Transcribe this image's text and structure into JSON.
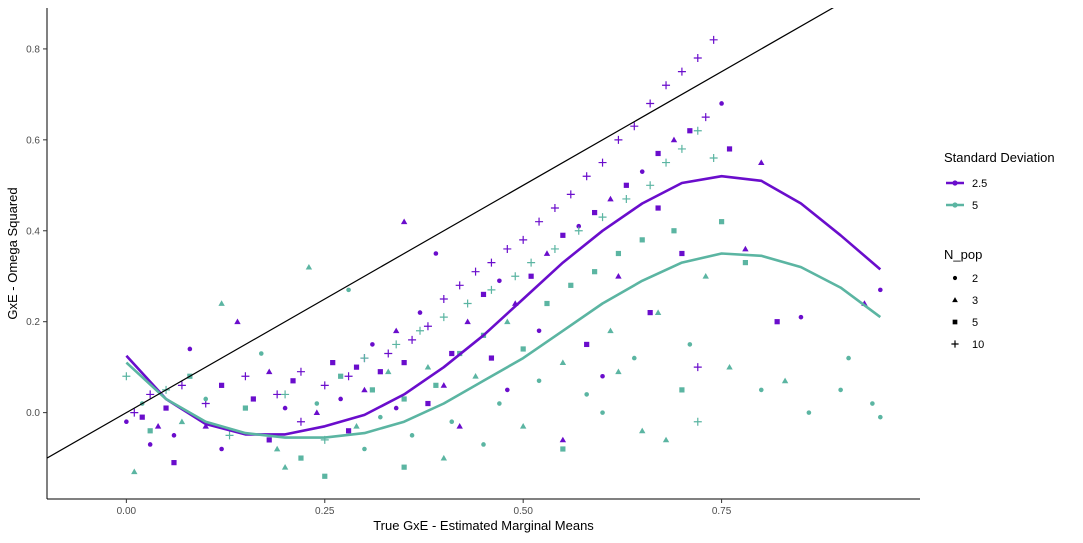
{
  "chart_data": {
    "type": "scatter",
    "xlabel": "True GxE - Estimated Marginal Means",
    "ylabel": "GxE - Omega Squared",
    "xlim": [
      -0.1,
      1.0
    ],
    "ylim": [
      -0.19,
      0.89
    ],
    "x_ticks": [
      "0.00",
      "0.25",
      "0.50",
      "0.75"
    ],
    "y_ticks": [
      "0.0",
      "0.2",
      "0.4",
      "0.6",
      "0.8"
    ],
    "grid": false,
    "legend_placement": "right",
    "reference_line": {
      "intercept": 0.0,
      "slope": 1.0,
      "color": "#000000"
    },
    "colors": {
      "2.5": "#6a0dcc",
      "5": "#5bb5a2"
    },
    "legends": [
      {
        "title": "Standard Deviation",
        "entries": [
          {
            "label": "2.5",
            "color": "#6a0dcc"
          },
          {
            "label": "5",
            "color": "#5bb5a2"
          }
        ]
      },
      {
        "title": "N_pop",
        "entries": [
          {
            "label": "2",
            "shape": "circle"
          },
          {
            "label": "3",
            "shape": "triangle"
          },
          {
            "label": "5",
            "shape": "square"
          },
          {
            "label": "10",
            "shape": "plus"
          }
        ]
      }
    ],
    "trend_lines": [
      {
        "name": "2.5",
        "color": "#6a0dcc",
        "x": [
          0.0,
          0.05,
          0.1,
          0.15,
          0.2,
          0.25,
          0.3,
          0.35,
          0.4,
          0.45,
          0.5,
          0.55,
          0.6,
          0.65,
          0.7,
          0.75,
          0.8,
          0.85,
          0.9,
          0.95
        ],
        "y": [
          0.125,
          0.03,
          -0.025,
          -0.048,
          -0.048,
          -0.03,
          -0.005,
          0.04,
          0.1,
          0.17,
          0.25,
          0.33,
          0.4,
          0.46,
          0.505,
          0.52,
          0.51,
          0.46,
          0.39,
          0.315
        ]
      },
      {
        "name": "5",
        "color": "#5bb5a2",
        "x": [
          0.0,
          0.05,
          0.1,
          0.15,
          0.2,
          0.25,
          0.3,
          0.35,
          0.4,
          0.45,
          0.5,
          0.55,
          0.6,
          0.65,
          0.7,
          0.75,
          0.8,
          0.85,
          0.9,
          0.95
        ],
        "y": [
          0.11,
          0.03,
          -0.02,
          -0.045,
          -0.055,
          -0.055,
          -0.045,
          -0.02,
          0.02,
          0.07,
          0.12,
          0.18,
          0.24,
          0.29,
          0.33,
          0.35,
          0.345,
          0.32,
          0.275,
          0.21
        ]
      }
    ],
    "series": [
      {
        "name": "2.5",
        "color": "#6a0dcc",
        "points": [
          [
            0.0,
            -0.02,
            "circle"
          ],
          [
            0.01,
            0.0,
            "plus"
          ],
          [
            0.02,
            -0.01,
            "square"
          ],
          [
            0.03,
            0.04,
            "plus"
          ],
          [
            0.04,
            -0.03,
            "triangle"
          ],
          [
            0.05,
            0.01,
            "square"
          ],
          [
            0.06,
            -0.05,
            "circle"
          ],
          [
            0.07,
            0.06,
            "plus"
          ],
          [
            0.08,
            0.14,
            "circle"
          ],
          [
            0.1,
            0.02,
            "plus"
          ],
          [
            0.12,
            0.06,
            "square"
          ],
          [
            0.12,
            -0.08,
            "circle"
          ],
          [
            0.14,
            0.2,
            "triangle"
          ],
          [
            0.15,
            0.08,
            "plus"
          ],
          [
            0.16,
            0.03,
            "square"
          ],
          [
            0.18,
            0.09,
            "triangle"
          ],
          [
            0.19,
            0.04,
            "plus"
          ],
          [
            0.2,
            0.01,
            "circle"
          ],
          [
            0.21,
            0.07,
            "square"
          ],
          [
            0.22,
            0.09,
            "plus"
          ],
          [
            0.24,
            0.0,
            "triangle"
          ],
          [
            0.25,
            0.06,
            "plus"
          ],
          [
            0.26,
            0.11,
            "square"
          ],
          [
            0.27,
            0.03,
            "circle"
          ],
          [
            0.28,
            0.08,
            "plus"
          ],
          [
            0.29,
            0.1,
            "square"
          ],
          [
            0.3,
            0.05,
            "triangle"
          ],
          [
            0.3,
            0.12,
            "plus"
          ],
          [
            0.31,
            0.15,
            "circle"
          ],
          [
            0.32,
            0.09,
            "square"
          ],
          [
            0.33,
            0.13,
            "plus"
          ],
          [
            0.34,
            0.18,
            "triangle"
          ],
          [
            0.35,
            0.42,
            "triangle"
          ],
          [
            0.35,
            0.11,
            "square"
          ],
          [
            0.36,
            0.16,
            "plus"
          ],
          [
            0.37,
            0.22,
            "circle"
          ],
          [
            0.38,
            0.19,
            "plus"
          ],
          [
            0.39,
            0.35,
            "circle"
          ],
          [
            0.4,
            0.25,
            "plus"
          ],
          [
            0.41,
            0.13,
            "square"
          ],
          [
            0.42,
            0.28,
            "plus"
          ],
          [
            0.43,
            0.2,
            "triangle"
          ],
          [
            0.44,
            0.31,
            "plus"
          ],
          [
            0.45,
            0.26,
            "square"
          ],
          [
            0.46,
            0.33,
            "plus"
          ],
          [
            0.47,
            0.29,
            "circle"
          ],
          [
            0.48,
            0.36,
            "plus"
          ],
          [
            0.49,
            0.24,
            "triangle"
          ],
          [
            0.5,
            0.38,
            "plus"
          ],
          [
            0.51,
            0.3,
            "square"
          ],
          [
            0.52,
            0.42,
            "plus"
          ],
          [
            0.53,
            0.35,
            "triangle"
          ],
          [
            0.54,
            0.45,
            "plus"
          ],
          [
            0.55,
            0.39,
            "square"
          ],
          [
            0.56,
            0.48,
            "plus"
          ],
          [
            0.57,
            0.41,
            "circle"
          ],
          [
            0.58,
            0.52,
            "plus"
          ],
          [
            0.59,
            0.44,
            "square"
          ],
          [
            0.6,
            0.55,
            "plus"
          ],
          [
            0.61,
            0.47,
            "triangle"
          ],
          [
            0.62,
            0.6,
            "plus"
          ],
          [
            0.63,
            0.5,
            "square"
          ],
          [
            0.64,
            0.63,
            "plus"
          ],
          [
            0.65,
            0.53,
            "circle"
          ],
          [
            0.66,
            0.68,
            "plus"
          ],
          [
            0.67,
            0.57,
            "square"
          ],
          [
            0.68,
            0.72,
            "plus"
          ],
          [
            0.69,
            0.6,
            "triangle"
          ],
          [
            0.7,
            0.75,
            "plus"
          ],
          [
            0.71,
            0.62,
            "square"
          ],
          [
            0.72,
            0.78,
            "plus"
          ],
          [
            0.73,
            0.65,
            "plus"
          ],
          [
            0.74,
            0.82,
            "plus"
          ],
          [
            0.75,
            0.68,
            "circle"
          ],
          [
            0.76,
            0.58,
            "square"
          ],
          [
            0.78,
            0.36,
            "triangle"
          ],
          [
            0.8,
            0.55,
            "triangle"
          ],
          [
            0.82,
            0.2,
            "square"
          ],
          [
            0.85,
            0.21,
            "circle"
          ],
          [
            0.93,
            0.24,
            "triangle"
          ],
          [
            0.95,
            0.27,
            "circle"
          ],
          [
            0.72,
            0.1,
            "plus"
          ],
          [
            0.6,
            0.08,
            "circle"
          ],
          [
            0.55,
            -0.06,
            "triangle"
          ],
          [
            0.48,
            0.05,
            "circle"
          ],
          [
            0.42,
            -0.03,
            "triangle"
          ],
          [
            0.38,
            0.02,
            "square"
          ],
          [
            0.66,
            0.22,
            "square"
          ],
          [
            0.7,
            0.35,
            "square"
          ],
          [
            0.62,
            0.3,
            "triangle"
          ],
          [
            0.58,
            0.15,
            "square"
          ],
          [
            0.52,
            0.18,
            "circle"
          ],
          [
            0.46,
            0.12,
            "square"
          ],
          [
            0.4,
            0.06,
            "triangle"
          ],
          [
            0.34,
            0.01,
            "circle"
          ],
          [
            0.28,
            -0.04,
            "square"
          ],
          [
            0.22,
            -0.02,
            "plus"
          ],
          [
            0.18,
            -0.06,
            "square"
          ],
          [
            0.1,
            -0.03,
            "triangle"
          ],
          [
            0.06,
            -0.11,
            "square"
          ],
          [
            0.03,
            -0.07,
            "circle"
          ],
          [
            0.67,
            0.45,
            "square"
          ]
        ]
      },
      {
        "name": "5",
        "color": "#5bb5a2",
        "points": [
          [
            0.0,
            0.08,
            "plus"
          ],
          [
            0.01,
            -0.13,
            "triangle"
          ],
          [
            0.02,
            0.02,
            "circle"
          ],
          [
            0.03,
            -0.04,
            "square"
          ],
          [
            0.05,
            0.05,
            "plus"
          ],
          [
            0.07,
            -0.02,
            "triangle"
          ],
          [
            0.08,
            0.08,
            "square"
          ],
          [
            0.1,
            0.03,
            "circle"
          ],
          [
            0.12,
            0.24,
            "triangle"
          ],
          [
            0.13,
            -0.05,
            "plus"
          ],
          [
            0.15,
            0.01,
            "square"
          ],
          [
            0.17,
            0.13,
            "circle"
          ],
          [
            0.19,
            -0.08,
            "triangle"
          ],
          [
            0.2,
            0.04,
            "plus"
          ],
          [
            0.22,
            -0.1,
            "square"
          ],
          [
            0.23,
            0.32,
            "triangle"
          ],
          [
            0.24,
            0.02,
            "circle"
          ],
          [
            0.25,
            -0.06,
            "plus"
          ],
          [
            0.27,
            0.08,
            "square"
          ],
          [
            0.28,
            0.27,
            "circle"
          ],
          [
            0.29,
            -0.03,
            "triangle"
          ],
          [
            0.3,
            0.12,
            "plus"
          ],
          [
            0.31,
            0.05,
            "square"
          ],
          [
            0.32,
            -0.01,
            "circle"
          ],
          [
            0.33,
            0.09,
            "triangle"
          ],
          [
            0.34,
            0.15,
            "plus"
          ],
          [
            0.35,
            0.03,
            "square"
          ],
          [
            0.36,
            -0.05,
            "circle"
          ],
          [
            0.37,
            0.18,
            "plus"
          ],
          [
            0.38,
            0.1,
            "triangle"
          ],
          [
            0.39,
            0.06,
            "square"
          ],
          [
            0.4,
            0.21,
            "plus"
          ],
          [
            0.41,
            -0.02,
            "circle"
          ],
          [
            0.42,
            0.13,
            "square"
          ],
          [
            0.43,
            0.24,
            "plus"
          ],
          [
            0.44,
            0.08,
            "triangle"
          ],
          [
            0.45,
            0.17,
            "square"
          ],
          [
            0.46,
            0.27,
            "plus"
          ],
          [
            0.47,
            0.02,
            "circle"
          ],
          [
            0.48,
            0.2,
            "triangle"
          ],
          [
            0.49,
            0.3,
            "plus"
          ],
          [
            0.5,
            0.14,
            "square"
          ],
          [
            0.51,
            0.33,
            "plus"
          ],
          [
            0.52,
            0.07,
            "circle"
          ],
          [
            0.53,
            0.24,
            "square"
          ],
          [
            0.54,
            0.36,
            "plus"
          ],
          [
            0.55,
            0.11,
            "triangle"
          ],
          [
            0.56,
            0.28,
            "square"
          ],
          [
            0.57,
            0.4,
            "plus"
          ],
          [
            0.58,
            0.04,
            "circle"
          ],
          [
            0.59,
            0.31,
            "square"
          ],
          [
            0.6,
            0.43,
            "plus"
          ],
          [
            0.61,
            0.18,
            "triangle"
          ],
          [
            0.62,
            0.35,
            "square"
          ],
          [
            0.63,
            0.47,
            "plus"
          ],
          [
            0.64,
            0.12,
            "circle"
          ],
          [
            0.65,
            0.38,
            "square"
          ],
          [
            0.66,
            0.5,
            "plus"
          ],
          [
            0.67,
            0.22,
            "triangle"
          ],
          [
            0.68,
            0.55,
            "plus"
          ],
          [
            0.69,
            0.4,
            "square"
          ],
          [
            0.7,
            0.58,
            "plus"
          ],
          [
            0.71,
            0.15,
            "circle"
          ],
          [
            0.72,
            0.62,
            "plus"
          ],
          [
            0.73,
            0.3,
            "triangle"
          ],
          [
            0.74,
            0.56,
            "plus"
          ],
          [
            0.75,
            0.42,
            "square"
          ],
          [
            0.76,
            0.1,
            "triangle"
          ],
          [
            0.78,
            0.33,
            "square"
          ],
          [
            0.8,
            0.05,
            "circle"
          ],
          [
            0.83,
            0.07,
            "triangle"
          ],
          [
            0.86,
            0.0,
            "circle"
          ],
          [
            0.9,
            0.05,
            "circle"
          ],
          [
            0.91,
            0.12,
            "circle"
          ],
          [
            0.94,
            0.02,
            "circle"
          ],
          [
            0.95,
            -0.01,
            "circle"
          ],
          [
            0.65,
            -0.04,
            "triangle"
          ],
          [
            0.6,
            0.0,
            "circle"
          ],
          [
            0.55,
            -0.08,
            "square"
          ],
          [
            0.5,
            -0.03,
            "triangle"
          ],
          [
            0.45,
            -0.07,
            "circle"
          ],
          [
            0.4,
            -0.1,
            "triangle"
          ],
          [
            0.35,
            -0.12,
            "square"
          ],
          [
            0.3,
            -0.08,
            "circle"
          ],
          [
            0.25,
            -0.14,
            "square"
          ],
          [
            0.2,
            -0.12,
            "triangle"
          ],
          [
            0.7,
            0.05,
            "square"
          ],
          [
            0.68,
            -0.06,
            "triangle"
          ],
          [
            0.72,
            -0.02,
            "plus"
          ],
          [
            0.62,
            0.09,
            "triangle"
          ]
        ]
      }
    ]
  }
}
